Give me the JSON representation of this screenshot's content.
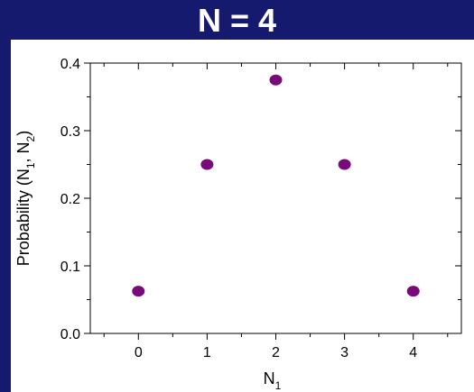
{
  "slide": {
    "title": "N = 4"
  },
  "chart_data": {
    "type": "scatter",
    "title": "N = 4",
    "xlabel": "N",
    "xlabel_sub": "1",
    "ylabel_parts": [
      {
        "text": "Probability (N"
      },
      {
        "text": "1",
        "sub": true
      },
      {
        "text": ", N"
      },
      {
        "text": "2",
        "sub": true
      },
      {
        "text": ")"
      }
    ],
    "xlim": [
      -0.7,
      4.7
    ],
    "ylim": [
      0,
      0.4
    ],
    "xticks": [
      0,
      1,
      2,
      3,
      4
    ],
    "xtick_labels": [
      "0",
      "1",
      "2",
      "3",
      "4"
    ],
    "yticks": [
      0.0,
      0.1,
      0.2,
      0.3,
      0.4
    ],
    "ytick_labels": [
      "0.0",
      "0.1",
      "0.2",
      "0.3",
      "0.4"
    ],
    "grid": false,
    "marker_color": "#7a0a7a",
    "series": [
      {
        "x": [
          0,
          1,
          2,
          3,
          4
        ],
        "y": [
          0.0625,
          0.25,
          0.375,
          0.25,
          0.0625
        ]
      }
    ]
  },
  "colors": {
    "background": "#161a6e",
    "plot_background": "#ffffff",
    "title": "#ffffff"
  }
}
